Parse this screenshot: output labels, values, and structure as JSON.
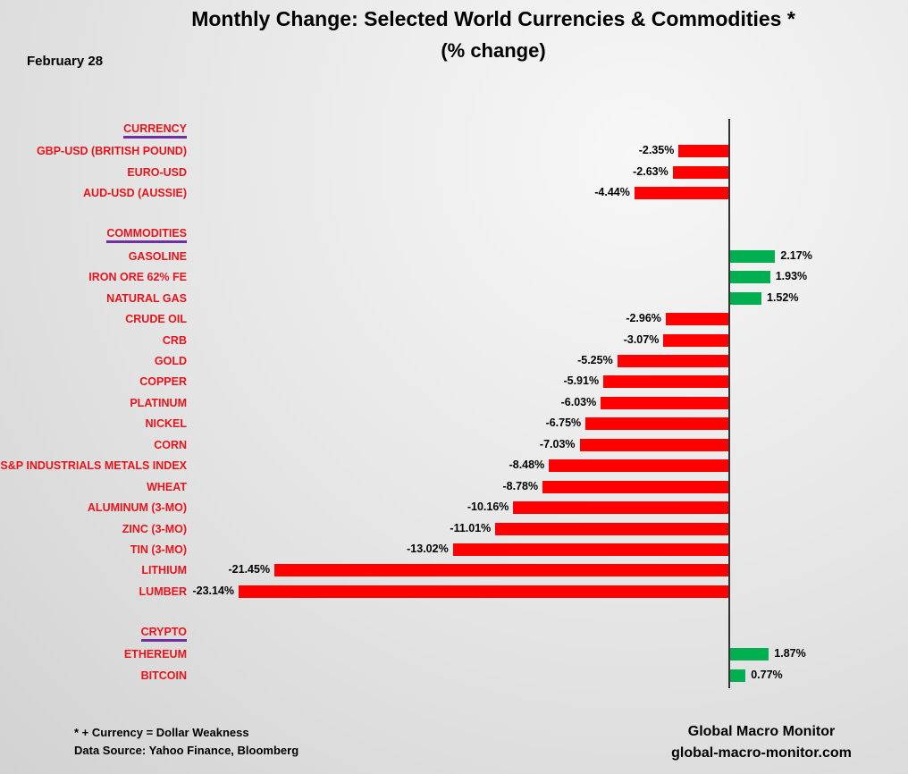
{
  "chart_data": {
    "type": "bar",
    "orientation": "horizontal",
    "title": "Monthly Change: Selected World Currencies & Commodities *",
    "subtitle": "(% change)",
    "date": "February 28",
    "colors": {
      "negative": "#ff0000",
      "positive": "#00b050",
      "label": "#e8141b",
      "header_underline": "#7030a0"
    },
    "groups": [
      {
        "name": "CURRENCY",
        "items": [
          {
            "label": "GBP-USD (BRITISH POUND)",
            "value": -2.35,
            "text": "-2.35%"
          },
          {
            "label": "EURO-USD",
            "value": -2.63,
            "text": "-2.63%"
          },
          {
            "label": "AUD-USD (AUSSIE)",
            "value": -4.44,
            "text": "-4.44%"
          }
        ]
      },
      {
        "name": "COMMODITIES",
        "items": [
          {
            "label": "GASOLINE",
            "value": 2.17,
            "text": "2.17%"
          },
          {
            "label": "IRON ORE 62% FE",
            "value": 1.93,
            "text": "1.93%"
          },
          {
            "label": "NATURAL GAS",
            "value": 1.52,
            "text": "1.52%"
          },
          {
            "label": "CRUDE OIL",
            "value": -2.96,
            "text": "-2.96%"
          },
          {
            "label": "CRB",
            "value": -3.07,
            "text": "-3.07%"
          },
          {
            "label": "GOLD",
            "value": -5.25,
            "text": "-5.25%"
          },
          {
            "label": "COPPER",
            "value": -5.91,
            "text": "-5.91%"
          },
          {
            "label": "PLATINUM",
            "value": -6.03,
            "text": "-6.03%"
          },
          {
            "label": "NICKEL",
            "value": -6.75,
            "text": "-6.75%"
          },
          {
            "label": "CORN",
            "value": -7.03,
            "text": "-7.03%"
          },
          {
            "label": "S&P INDUSTRIALS METALS INDEX",
            "value": -8.48,
            "text": "-8.48%"
          },
          {
            "label": "WHEAT",
            "value": -8.78,
            "text": "-8.78%"
          },
          {
            "label": "ALUMINUM (3-MO)",
            "value": -10.16,
            "text": "-10.16%"
          },
          {
            "label": "ZINC (3-MO)",
            "value": -11.01,
            "text": "-11.01%"
          },
          {
            "label": "TIN (3-MO)",
            "value": -13.02,
            "text": "-13.02%"
          },
          {
            "label": "LITHIUM",
            "value": -21.45,
            "text": "-21.45%"
          },
          {
            "label": "LUMBER",
            "value": -23.14,
            "text": "-23.14%"
          }
        ]
      },
      {
        "name": "CRYPTO",
        "items": [
          {
            "label": "ETHEREUM",
            "value": 1.87,
            "text": "1.87%"
          },
          {
            "label": "BITCOIN",
            "value": 0.77,
            "text": "0.77%"
          }
        ]
      }
    ]
  },
  "footer": {
    "note": "* + Currency = Dollar Weakness",
    "source": "Data Source:  Yahoo Finance, Bloomberg",
    "brand": "Global Macro Monitor",
    "site": "global-macro-monitor.com"
  }
}
